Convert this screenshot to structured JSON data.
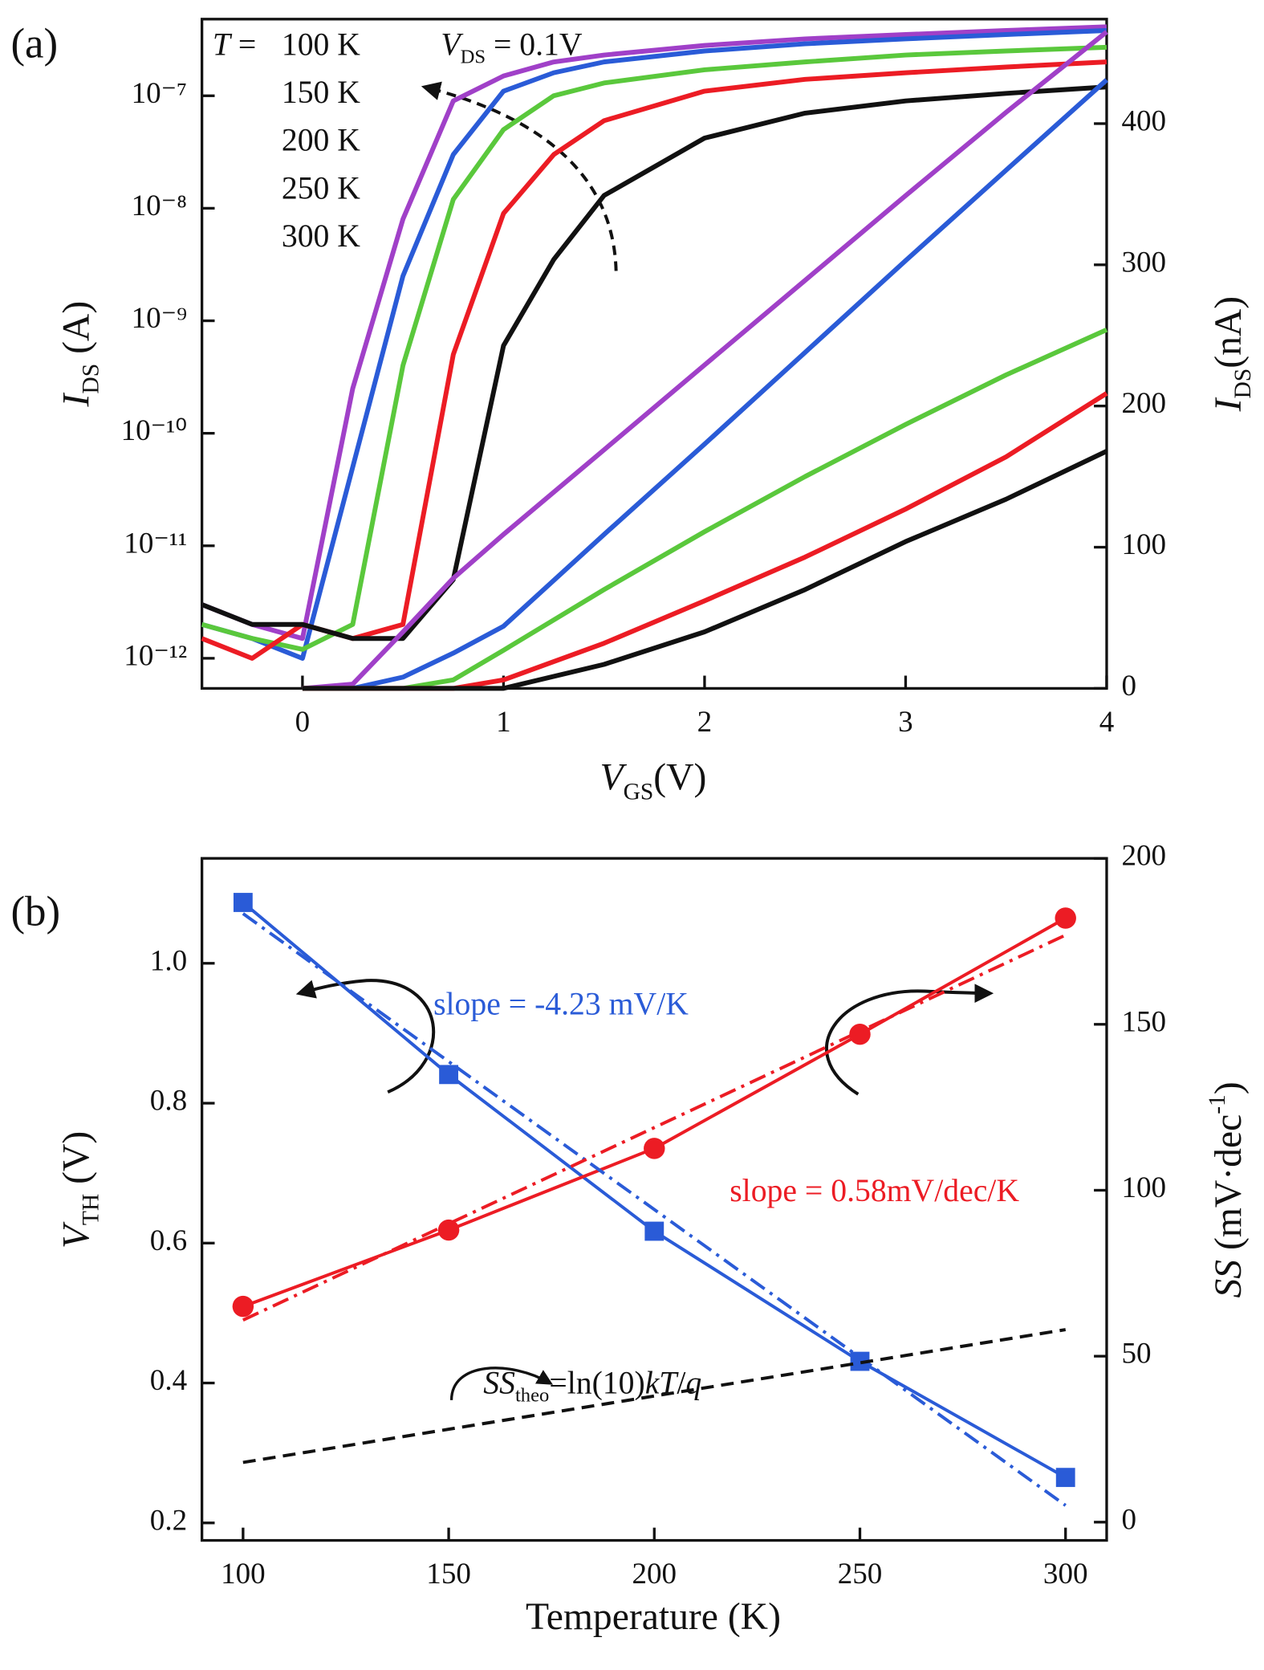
{
  "chart_data": [
    {
      "type": "line",
      "panel_label": "(a)",
      "x_label": {
        "main": "V",
        "sub": "GS",
        "rest": "(V)"
      },
      "y_label": {
        "main": "I",
        "sub": "DS",
        "rest": " (A)"
      },
      "y2_label": {
        "main": "I",
        "sub": "DS",
        "rest": "(nA)"
      },
      "legend_prefix": {
        "it": "T",
        "rest": " = "
      },
      "annotation": {
        "main": "V",
        "sub": "DS",
        "rest": " = 0.1V"
      },
      "xlim": [
        -0.5,
        4
      ],
      "xticks": [
        0,
        1,
        2,
        3,
        4
      ],
      "yscale": "log",
      "ylim": [
        5.4e-13,
        4.8e-07
      ],
      "yticks": [
        {
          "value": 1e-12,
          "label": "10⁻¹²"
        },
        {
          "value": 1e-11,
          "label": "10⁻¹¹"
        },
        {
          "value": 1e-10,
          "label": "10⁻¹⁰"
        },
        {
          "value": 1e-09,
          "label": "10⁻⁹"
        },
        {
          "value": 1e-08,
          "label": "10⁻⁸"
        },
        {
          "value": 1e-07,
          "label": "10⁻⁷"
        }
      ],
      "y2lim": [
        0,
        474
      ],
      "y2ticks": [
        0,
        100,
        200,
        300,
        400
      ],
      "series": [
        {
          "name": "100 K",
          "color": "#a040c8",
          "x": [
            -0.5,
            -0.25,
            0,
            0.25,
            0.5,
            0.75,
            1,
            1.25,
            1.5,
            2,
            2.5,
            3,
            3.5,
            4
          ],
          "values": [
            3e-12,
            2e-12,
            1.5e-12,
            2.5e-10,
            8e-09,
            9e-08,
            1.5e-07,
            2e-07,
            2.3e-07,
            2.8e-07,
            3.2e-07,
            3.5e-07,
            3.8e-07,
            4.1e-07
          ]
        },
        {
          "name": "150 K",
          "color": "#2a5bd7",
          "x": [
            -0.5,
            -0.25,
            0,
            0.25,
            0.5,
            0.75,
            1,
            1.25,
            1.5,
            2,
            2.5,
            3,
            3.5,
            4
          ],
          "values": [
            2e-12,
            1.5e-12,
            1e-12,
            5e-11,
            2.5e-09,
            3e-08,
            1.1e-07,
            1.6e-07,
            2e-07,
            2.5e-07,
            2.9e-07,
            3.2e-07,
            3.5e-07,
            3.8e-07
          ]
        },
        {
          "name": "200 K",
          "color": "#5ac83c",
          "x": [
            -0.5,
            -0.25,
            0,
            0.25,
            0.5,
            0.75,
            1,
            1.25,
            1.5,
            2,
            2.5,
            3,
            3.5,
            4
          ],
          "values": [
            2e-12,
            1.5e-12,
            1.2e-12,
            2e-12,
            4e-10,
            1.2e-08,
            5e-08,
            1e-07,
            1.3e-07,
            1.7e-07,
            2e-07,
            2.3e-07,
            2.5e-07,
            2.7e-07
          ]
        },
        {
          "name": "250 K",
          "color": "#ec1c24",
          "x": [
            -0.5,
            -0.25,
            0,
            0.25,
            0.5,
            0.75,
            1,
            1.25,
            1.5,
            2,
            2.5,
            3,
            3.5,
            4
          ],
          "values": [
            1.5e-12,
            1e-12,
            2e-12,
            1.5e-12,
            2e-12,
            5e-10,
            9e-09,
            3e-08,
            6e-08,
            1.1e-07,
            1.4e-07,
            1.6e-07,
            1.8e-07,
            2e-07
          ]
        },
        {
          "name": "300 K",
          "color": "#111111",
          "x": [
            -0.5,
            -0.25,
            0,
            0.25,
            0.5,
            0.75,
            1,
            1.25,
            1.5,
            2,
            2.5,
            3,
            3.5,
            4
          ],
          "values": [
            3e-12,
            2e-12,
            2e-12,
            1.5e-12,
            1.5e-12,
            5e-12,
            6e-10,
            3.5e-09,
            1.3e-08,
            4.2e-08,
            7e-08,
            9e-08,
            1.05e-07,
            1.2e-07
          ]
        },
        {
          "color": "#a040c8",
          "axis": "y2",
          "x": [
            0,
            0.25,
            0.5,
            0.75,
            1,
            1.5,
            2,
            2.5,
            3,
            3.5,
            4
          ],
          "values": [
            0,
            3,
            40,
            78,
            109,
            169,
            229,
            289,
            349,
            408,
            465
          ]
        },
        {
          "color": "#2a5bd7",
          "axis": "y2",
          "x": [
            0,
            0.25,
            0.5,
            0.75,
            1,
            1.5,
            2,
            2.5,
            3,
            3.5,
            4
          ],
          "values": [
            0,
            0,
            8,
            25,
            44,
            109,
            173,
            238,
            303,
            367,
            431
          ]
        },
        {
          "color": "#5ac83c",
          "axis": "y2",
          "x": [
            0,
            0.25,
            0.5,
            0.75,
            1,
            1.5,
            2,
            2.5,
            3,
            3.5,
            4
          ],
          "values": [
            0,
            0,
            0,
            6,
            27,
            70,
            111,
            150,
            187,
            222,
            254
          ]
        },
        {
          "color": "#ec1c24",
          "axis": "y2",
          "x": [
            0,
            0.25,
            0.5,
            0.75,
            1,
            1.5,
            2,
            2.5,
            3,
            3.5,
            4
          ],
          "values": [
            0,
            0,
            0,
            0,
            6,
            32,
            62,
            93,
            127,
            164,
            209
          ]
        },
        {
          "color": "#111111",
          "axis": "y2",
          "x": [
            0,
            0.25,
            0.5,
            0.75,
            1,
            1.5,
            2,
            2.5,
            3,
            3.5,
            4
          ],
          "values": [
            0,
            0,
            0,
            0,
            0,
            17,
            40,
            70,
            104,
            134,
            168
          ]
        }
      ]
    },
    {
      "type": "line",
      "panel_label": "(b)",
      "x_label": {
        "rest": "Temperature (K)"
      },
      "y_label": {
        "main": "V",
        "sub": "TH",
        "rest": " (V)"
      },
      "y2_label": {
        "main": "SS",
        "rest": " (mV·dec",
        "sup": "-1",
        "end": ")"
      },
      "xlim": [
        90,
        310
      ],
      "xticks": [
        100,
        150,
        200,
        250,
        300
      ],
      "ylim": [
        0.175,
        1.15
      ],
      "yticks": [
        0.2,
        0.4,
        0.6,
        0.8,
        {
          "value": 1,
          "label": "1.0"
        }
      ],
      "y2lim": [
        -5.5,
        200
      ],
      "y2ticks": [
        0,
        50,
        100,
        150,
        200
      ],
      "annotations": [
        {
          "text": {
            "rest": "slope = -4.23 mV/K"
          },
          "color": "#2a5bd7"
        },
        {
          "text": {
            "rest": "slope = 0.58mV/dec/K"
          },
          "color": "#ec1c24"
        },
        {
          "text": {
            "main": "SS",
            "sub": "theo",
            "rest": "=ln(10)",
            "it": "kT",
            "end": "/",
            "it2": "q"
          },
          "color": "#111111"
        }
      ],
      "series": [
        {
          "color": "#2a5bd7",
          "marker": "square",
          "x": [
            100,
            150,
            200,
            250,
            300
          ],
          "values": [
            1.087,
            0.841,
            0.617,
            0.431,
            0.265
          ]
        },
        {
          "color": "#ec1c24",
          "marker": "circle",
          "axis": "y2",
          "x": [
            100,
            150,
            200,
            250,
            300
          ],
          "values": [
            65,
            88,
            112.6,
            147,
            182
          ]
        },
        {
          "color": "#2a5bd7",
          "dash": "dashdot",
          "x": [
            100,
            300
          ],
          "values": [
            1.071,
            0.225
          ]
        },
        {
          "color": "#ec1c24",
          "dash": "dashdot",
          "axis": "y2",
          "x": [
            100,
            300
          ],
          "values": [
            60.9,
            176.9
          ]
        },
        {
          "color": "#111111",
          "dash": "dashed",
          "axis": "y2",
          "x": [
            100,
            300
          ],
          "values": [
            18,
            58
          ]
        }
      ]
    }
  ]
}
